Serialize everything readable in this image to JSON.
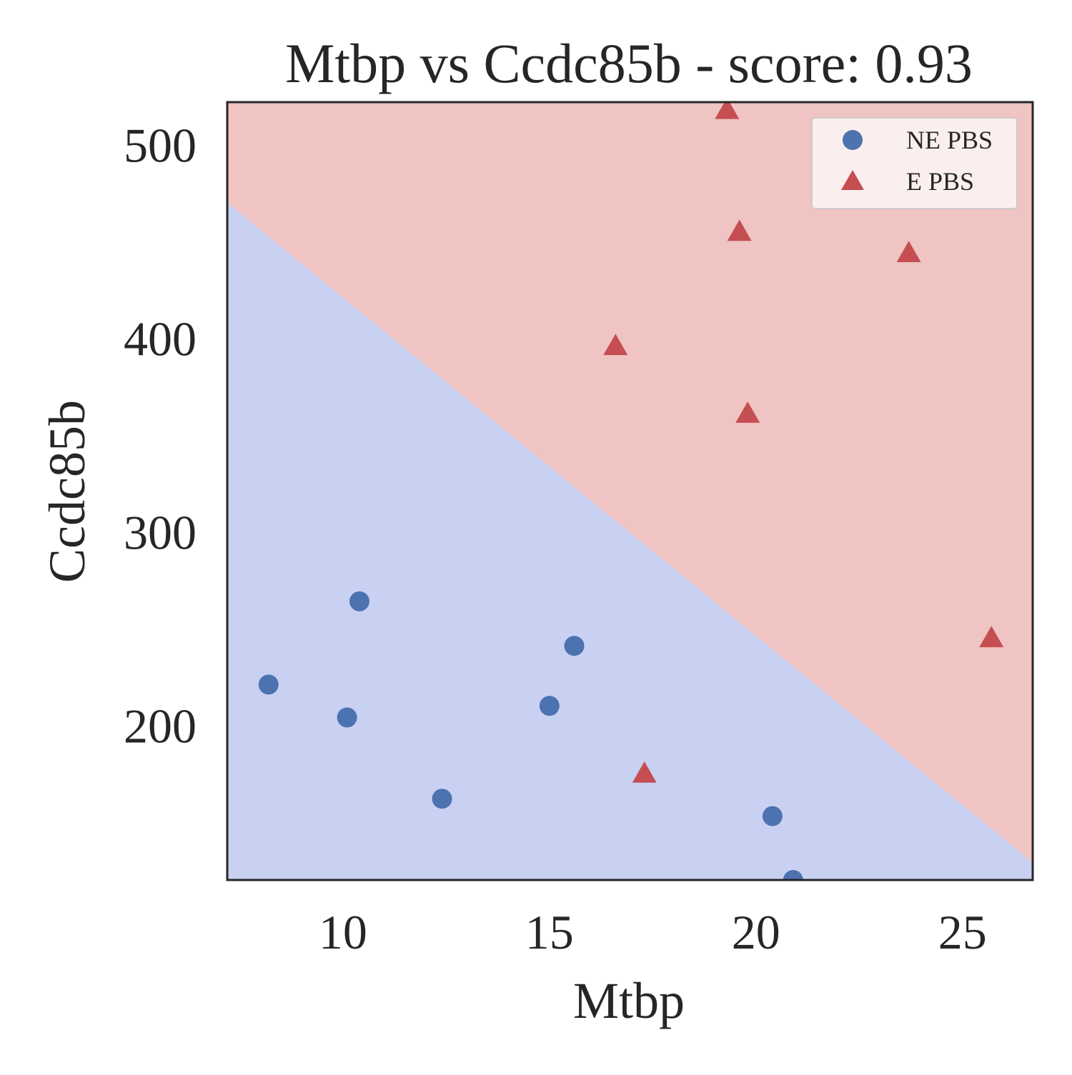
{
  "chart_data": {
    "type": "scatter",
    "title": "Mtbp vs Ccdc85b - score: 0.93",
    "xlabel": "Mtbp",
    "ylabel": "Ccdc85b",
    "xlim": [
      7.2,
      26.7
    ],
    "ylim": [
      120,
      522
    ],
    "xticks": [
      10,
      15,
      20,
      25
    ],
    "yticks": [
      200,
      300,
      400,
      500
    ],
    "grid": false,
    "legend_position": "top-right",
    "decision_boundary": {
      "points": [
        [
          7.2,
          470
        ],
        [
          26.7,
          129
        ]
      ],
      "above_color": "#efc4c3",
      "below_color": "#c9d1f2"
    },
    "series": [
      {
        "name": "NE PBS",
        "marker": "circle",
        "color": "#4c72b0",
        "points": [
          [
            8.2,
            221
          ],
          [
            10.1,
            204
          ],
          [
            10.4,
            264
          ],
          [
            12.4,
            162
          ],
          [
            15.0,
            210
          ],
          [
            15.6,
            241
          ],
          [
            20.4,
            153
          ],
          [
            20.9,
            120
          ]
        ]
      },
      {
        "name": "E PBS",
        "marker": "triangle",
        "color": "#c44e52",
        "points": [
          [
            19.3,
            518
          ],
          [
            19.6,
            455
          ],
          [
            23.7,
            444
          ],
          [
            16.6,
            396
          ],
          [
            19.8,
            361
          ],
          [
            25.7,
            245
          ],
          [
            17.3,
            175
          ]
        ]
      }
    ]
  }
}
